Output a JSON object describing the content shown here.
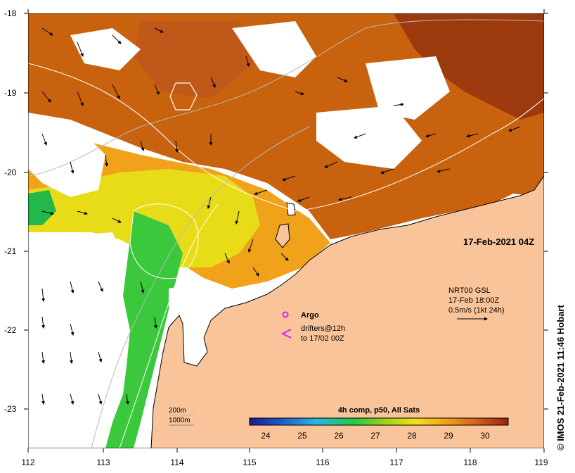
{
  "map": {
    "timestamp": "17-Feb-2021 04Z",
    "lat_ticks": [
      "-18",
      "-19",
      "-20",
      "-21",
      "-22",
      "-23"
    ],
    "lon_ticks": [
      "112",
      "113",
      "114",
      "115",
      "116",
      "117",
      "118",
      "119"
    ],
    "legend": {
      "argo_label": "Argo",
      "drifters_line1": "drifters@12h",
      "drifters_line2": "to 17/02 00Z",
      "current_title": "NRT00 GSL",
      "current_time": "17-Feb 18:00Z",
      "current_scale": "0.5m/s (1kt 24h)"
    },
    "bathy": {
      "line1": "200m",
      "line2": "1000m"
    },
    "colorbar": {
      "title": "4h comp, p50, All Sats",
      "labels": [
        "24",
        "25",
        "26",
        "27",
        "28",
        "29",
        "30"
      ],
      "colors": [
        "#1a1a8c",
        "#1f5fd0",
        "#2ab8e0",
        "#1fc84a",
        "#9ad21a",
        "#f2e21a",
        "#f0a21a",
        "#d4601a",
        "#9c200f"
      ]
    },
    "credit": "© IMOS 21-Feb-2021 11:46 Hobart",
    "colors": {
      "land": "#f9c499",
      "coast": "#000000",
      "contour": "#b8b8b8",
      "warm": "#c8620f",
      "hot": "#9c3a0e",
      "cool": "#3cc83c"
    }
  }
}
